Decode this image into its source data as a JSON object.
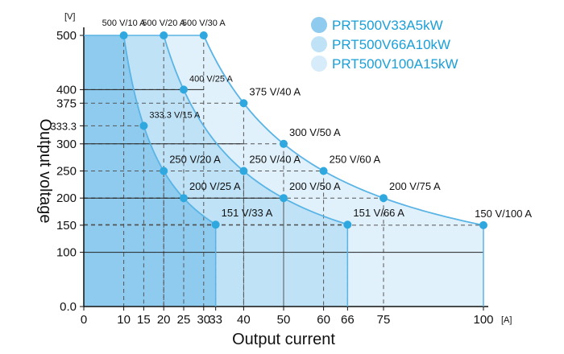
{
  "chart_data": {
    "type": "area",
    "xlabel": "Output current",
    "ylabel": "Output voltage",
    "x_unit": "[A]",
    "y_unit": "[V]",
    "xlim": [
      0,
      100
    ],
    "ylim": [
      0,
      500
    ],
    "x_ticks": [
      "0",
      "10",
      "15",
      "20",
      "25",
      "30",
      "33",
      "40",
      "50",
      "60",
      "66",
      "75",
      "100"
    ],
    "x_ticks_highlight": [
      "33",
      "66",
      "100"
    ],
    "y_ticks": [
      "0.0",
      "100",
      "150",
      "200",
      "250",
      "300",
      "333.3",
      "375",
      "400",
      "500"
    ],
    "y_ticks_highlight": [
      "500"
    ],
    "legend_position": "top-right",
    "series": [
      {
        "name": "PRT500V33A5kW",
        "color": "#5ab4e5",
        "fill": "#8fcbee",
        "points": [
          {
            "x": 10,
            "y": 500,
            "label": "500 V/10 A"
          },
          {
            "x": 15,
            "y": 333.3,
            "label": "333.3 V/15 A"
          },
          {
            "x": 20,
            "y": 250,
            "label": "250 V/20 A"
          },
          {
            "x": 25,
            "y": 200,
            "label": "200 V/25 A"
          },
          {
            "x": 33,
            "y": 151,
            "label": "151 V/33 A"
          }
        ]
      },
      {
        "name": "PRT500V66A10kW",
        "color": "#5ab4e5",
        "fill": "#bfe2f6",
        "points": [
          {
            "x": 20,
            "y": 500,
            "label": "500 V/20 A"
          },
          {
            "x": 25,
            "y": 400,
            "label": "400 V/25 A"
          },
          {
            "x": 40,
            "y": 250,
            "label": "250 V/40 A"
          },
          {
            "x": 50,
            "y": 200,
            "label": "200 V/50 A"
          },
          {
            "x": 66,
            "y": 151,
            "label": "151 V/66 A"
          }
        ]
      },
      {
        "name": "PRT500V100A15kW",
        "color": "#5ab4e5",
        "fill": "#e1f1fb",
        "points": [
          {
            "x": 30,
            "y": 500,
            "label": "500 V/30 A"
          },
          {
            "x": 40,
            "y": 375,
            "label": "375 V/40 A"
          },
          {
            "x": 50,
            "y": 300,
            "label": "300 V/50 A"
          },
          {
            "x": 60,
            "y": 250,
            "label": "250 V/60 A"
          },
          {
            "x": 75,
            "y": 200,
            "label": "200 V/75 A"
          },
          {
            "x": 100,
            "y": 150,
            "label": "150 V/100 A"
          }
        ]
      }
    ],
    "colors": {
      "highlight_text": "#d0021b",
      "legend_text": "#1a9fd8",
      "point": "#2ea8df",
      "curve": "#5ab4e5",
      "grid": "#222222"
    }
  }
}
